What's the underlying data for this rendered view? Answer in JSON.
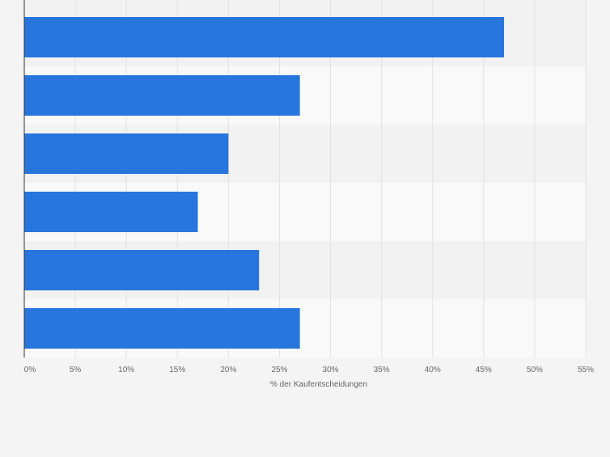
{
  "chart_data": {
    "type": "bar",
    "orientation": "horizontal",
    "categories": [
      "",
      "",
      "",
      "",
      "",
      ""
    ],
    "values": [
      47,
      27,
      20,
      17,
      23,
      27
    ],
    "unit": "%",
    "xlim": [
      0,
      55
    ],
    "xticks": [
      0,
      5,
      10,
      15,
      20,
      25,
      30,
      35,
      40,
      45,
      50,
      55
    ],
    "xtick_labels": [
      "0%",
      "5%",
      "10%",
      "15%",
      "20%",
      "25%",
      "30%",
      "35%",
      "40%",
      "45%",
      "50%",
      "55%"
    ],
    "xlabel": "% der Kaufentscheidungen",
    "ylabel": "",
    "title": "",
    "grid": true,
    "colors": {
      "bar": "#2776dd",
      "band_dark": "#f2f2f2",
      "band_light": "#f9f9f9",
      "grid": "#e2e2e2",
      "axis": "#333333",
      "tick_text": "#666666",
      "page_bg": "#f4f4f4"
    }
  }
}
